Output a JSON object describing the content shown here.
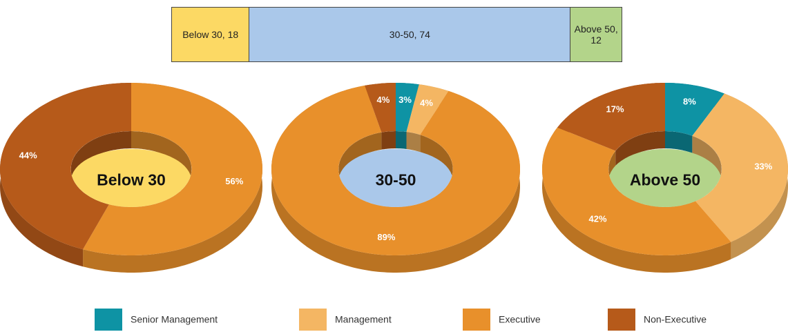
{
  "legend": {
    "categories": [
      "Senior Management",
      "Management",
      "Executive",
      "Non-Executive"
    ],
    "colors": [
      "#0e93a4",
      "#f4b663",
      "#e8902b",
      "#b65a1a"
    ]
  },
  "chart_data": [
    {
      "type": "bar",
      "values": [
        18,
        74,
        12
      ],
      "value_labels": [
        "Below 30, 18",
        "30-50, 74",
        "Above 50, 12"
      ],
      "colors": [
        "#fcd964",
        "#aac8ea",
        "#b3d48a"
      ]
    },
    {
      "type": "pie",
      "title": "Below 30",
      "center_color": "#fcd964",
      "values": [
        null,
        null,
        56,
        44
      ],
      "value_labels": [
        null,
        null,
        "56%",
        "44%"
      ]
    },
    {
      "type": "pie",
      "title": "30-50",
      "center_color": "#aac8ea",
      "values": [
        3,
        4,
        89,
        4
      ],
      "value_labels": [
        "3%",
        "4%",
        "89%",
        "4%"
      ]
    },
    {
      "type": "pie",
      "title": "Above 50",
      "center_color": "#b3d48a",
      "values": [
        8,
        33,
        42,
        17
      ],
      "value_labels": [
        "8%",
        "33%",
        "42%",
        "17%"
      ]
    }
  ]
}
